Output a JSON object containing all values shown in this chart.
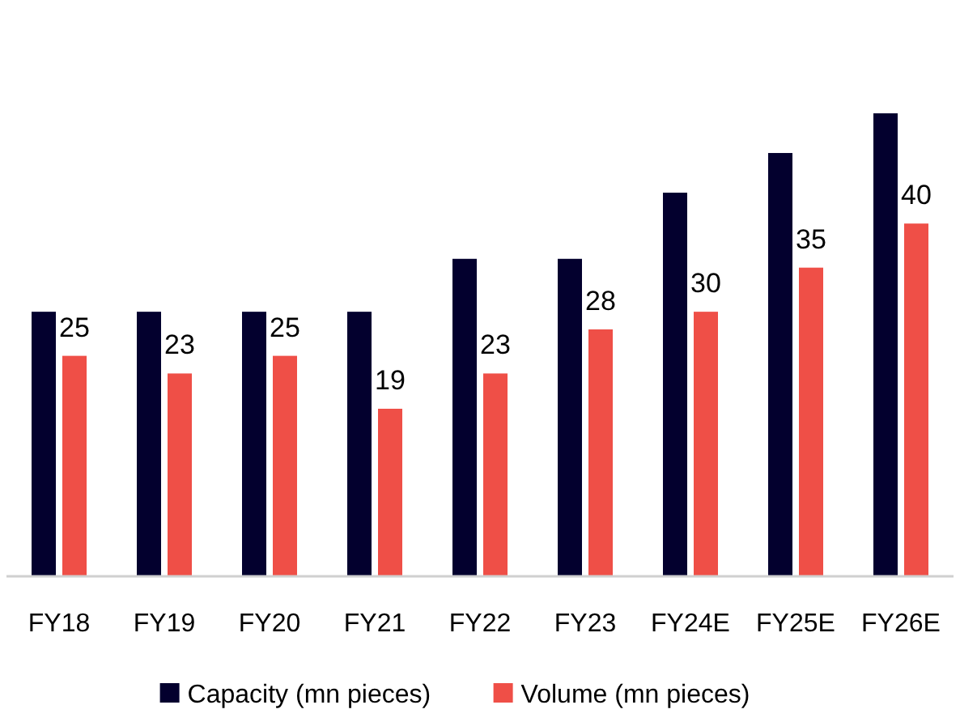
{
  "chart_data": {
    "type": "bar",
    "categories": [
      "FY18",
      "FY19",
      "FY20",
      "FY21",
      "FY22",
      "FY23",
      "FY24E",
      "FY25E",
      "FY26E"
    ],
    "series": [
      {
        "name": "Capacity (mn pieces)",
        "color": "#03002e",
        "values": [
          30,
          30,
          30,
          30,
          36,
          36,
          43.5,
          48,
          52.5
        ]
      },
      {
        "name": "Volume (mn pieces)",
        "color": "#ef4f47",
        "values": [
          25,
          23,
          25,
          19,
          23,
          28,
          30,
          35,
          40
        ],
        "value_labels": [
          "25",
          "23",
          "25",
          "19",
          "23",
          "28",
          "30",
          "35",
          "40"
        ]
      }
    ],
    "legend": "bottom",
    "grid": false
  }
}
